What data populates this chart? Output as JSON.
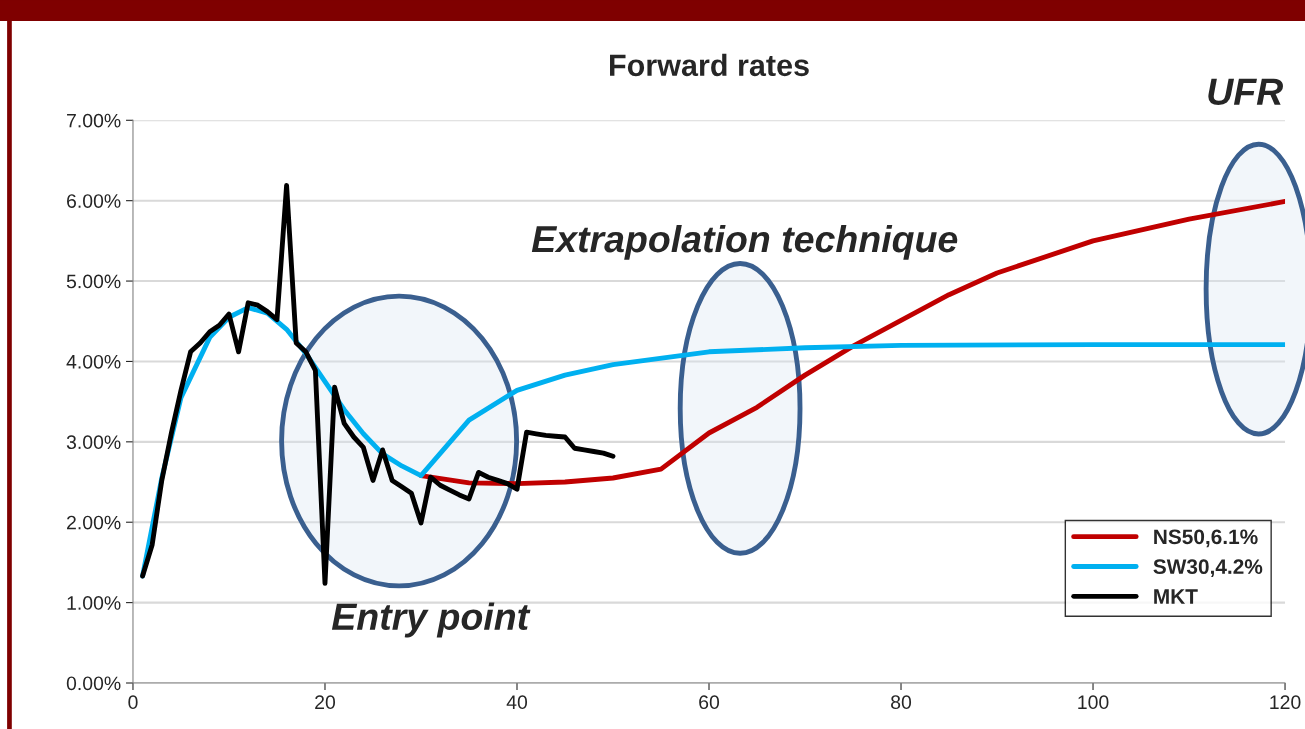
{
  "chart_data": {
    "type": "line",
    "title": "Forward rates",
    "annotations": [
      "Entry point",
      "Extrapolation technique",
      "UFR"
    ],
    "xlim": [
      0,
      120
    ],
    "xticks": [
      0,
      20,
      40,
      60,
      80,
      100,
      120
    ],
    "ylim": [
      0,
      7
    ],
    "yticks": [
      {
        "value": 0,
        "label": "0.00%"
      },
      {
        "value": 1,
        "label": "1.00%"
      },
      {
        "value": 2,
        "label": "2.00%"
      },
      {
        "value": 3,
        "label": "3.00%"
      },
      {
        "value": 4,
        "label": "4.00%"
      },
      {
        "value": 5,
        "label": "5.00%"
      },
      {
        "value": 6,
        "label": "6.00%"
      },
      {
        "value": 7,
        "label": "7.00%"
      }
    ],
    "grid": "y",
    "legend": "bottom right",
    "line_style": "solid",
    "series": [
      {
        "name": "NS50,6.1%",
        "color": "#c00000",
        "x": [
          30,
          35,
          40,
          45,
          50,
          55,
          60,
          65,
          70,
          75,
          80,
          85,
          90,
          100,
          110,
          120
        ],
        "values": [
          2.58,
          2.49,
          2.48,
          2.5,
          2.55,
          2.66,
          3.11,
          3.43,
          3.83,
          4.19,
          4.51,
          4.83,
          5.1,
          5.5,
          5.77,
          5.99
        ]
      },
      {
        "name": "SW30,4.2%",
        "color": "#00b0f0",
        "x": [
          1,
          3,
          5,
          8,
          10,
          12,
          14,
          16,
          18,
          20,
          22,
          24,
          26,
          28,
          30,
          35,
          40,
          45,
          50,
          60,
          70,
          80,
          100,
          120
        ],
        "values": [
          1.33,
          2.55,
          3.55,
          4.3,
          4.55,
          4.67,
          4.6,
          4.4,
          4.1,
          3.75,
          3.4,
          3.1,
          2.85,
          2.7,
          2.58,
          3.27,
          3.64,
          3.83,
          3.96,
          4.12,
          4.17,
          4.2,
          4.21,
          4.21
        ]
      },
      {
        "name": "MKT",
        "color": "#000000",
        "x": [
          1,
          2,
          3,
          4,
          5,
          6,
          7,
          8,
          9,
          10,
          11,
          12,
          13,
          14,
          15,
          16,
          17,
          18,
          19,
          20,
          21,
          22,
          23,
          24,
          25,
          26,
          27,
          28,
          29,
          30,
          31,
          32,
          33,
          34,
          35,
          36,
          37,
          38,
          39,
          40,
          41,
          42,
          43,
          44,
          45,
          46,
          47,
          48,
          49,
          50
        ],
        "values": [
          1.33,
          1.72,
          2.52,
          3.11,
          3.64,
          4.12,
          4.23,
          4.37,
          4.45,
          4.59,
          4.12,
          4.73,
          4.7,
          4.62,
          4.52,
          6.19,
          4.23,
          4.12,
          3.89,
          1.24,
          3.68,
          3.23,
          3.06,
          2.93,
          2.52,
          2.9,
          2.52,
          2.44,
          2.36,
          1.99,
          2.56,
          2.46,
          2.4,
          2.34,
          2.29,
          2.62,
          2.56,
          2.52,
          2.48,
          2.41,
          3.12,
          3.1,
          3.08,
          3.07,
          3.06,
          2.92,
          2.9,
          2.88,
          2.86,
          2.82
        ]
      }
    ]
  }
}
